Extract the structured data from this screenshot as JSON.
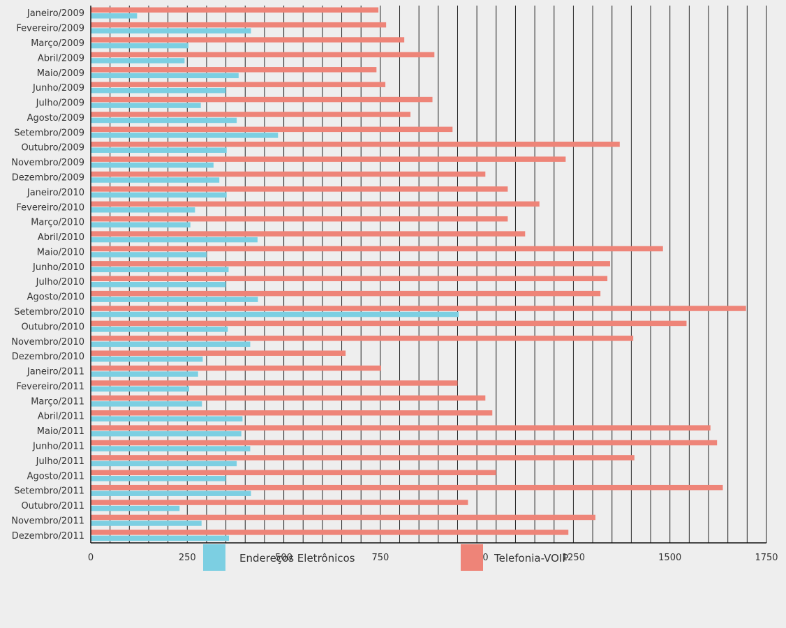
{
  "chart_data": {
    "type": "bar",
    "orientation": "horizontal",
    "title": "",
    "xlabel": "",
    "ylabel": "",
    "xlim": [
      0,
      1750
    ],
    "xticks": [
      0,
      250,
      500,
      750,
      1000,
      1250,
      1500,
      1750
    ],
    "grid": "vertical lines every 50",
    "legend_position": "bottom-center",
    "categories": [
      "Janeiro/2009",
      "Fevereiro/2009",
      "Março/2009",
      "Abril/2009",
      "Maio/2009",
      "Junho/2009",
      "Julho/2009",
      "Agosto/2009",
      "Setembro/2009",
      "Outubro/2009",
      "Novembro/2009",
      "Dezembro/2009",
      "Janeiro/2010",
      "Fevereiro/2010",
      "Março/2010",
      "Abril/2010",
      "Maio/2010",
      "Junho/2010",
      "Julho/2010",
      "Agosto/2010",
      "Setembro/2010",
      "Outubro/2010",
      "Novembro/2010",
      "Dezembro/2010",
      "Janeiro/2011",
      "Fevereiro/2011",
      "Março/2011",
      "Abril/2011",
      "Maio/2011",
      "Junho/2011",
      "Julho/2011",
      "Agosto/2011",
      "Setembro/2011",
      "Outubro/2011",
      "Novembro/2011",
      "Dezembro/2011"
    ],
    "series": [
      {
        "name": "Telefonia-VOIP",
        "color": "#ee8478",
        "values": [
          745,
          765,
          812,
          890,
          740,
          763,
          885,
          828,
          937,
          1370,
          1230,
          1022,
          1080,
          1162,
          1080,
          1125,
          1482,
          1345,
          1338,
          1320,
          1697,
          1543,
          1405,
          660,
          752,
          950,
          1022,
          1040,
          1605,
          1622,
          1408,
          1050,
          1637,
          977,
          1307,
          1237
        ]
      },
      {
        "name": "Endereços Eletrônicos",
        "color": "#7ccfe2",
        "values": [
          120,
          415,
          253,
          243,
          383,
          350,
          285,
          378,
          485,
          352,
          318,
          333,
          352,
          270,
          258,
          432,
          300,
          357,
          350,
          433,
          953,
          355,
          413,
          290,
          278,
          255,
          288,
          393,
          390,
          413,
          378,
          350,
          415,
          230,
          287,
          358
        ]
      }
    ]
  }
}
